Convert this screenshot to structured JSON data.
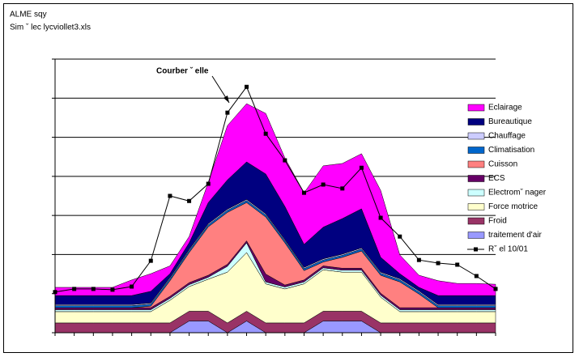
{
  "chart_data": {
    "type": "area",
    "stacked": true,
    "title": "ALME sqy",
    "subtitle": "Sim ˇ lec lycviollet3.xls",
    "annotation": "Courber ˇ elle",
    "categories": [
      null,
      null,
      null,
      null,
      null,
      null,
      null,
      null,
      null,
      null,
      null,
      null,
      null,
      null,
      null,
      null,
      null,
      null,
      null,
      null,
      null,
      null,
      null,
      null
    ],
    "ylim": [
      0,
      7
    ],
    "yticks": [
      0,
      1,
      2,
      3,
      4,
      5,
      6,
      7
    ],
    "grid": true,
    "legend": "right",
    "series": [
      {
        "name": "Eclairage",
        "color": "#ff00ff",
        "values": [
          0.21,
          0.21,
          0.21,
          0.21,
          0.4,
          0.45,
          0.2,
          0.16,
          0.52,
          1.39,
          1.49,
          1.55,
          1.24,
          1.32,
          1.57,
          1.41,
          1.41,
          1.71,
          0.48,
          0.31,
          0.38,
          0.31,
          0.31,
          0.29
        ]
      },
      {
        "name": "Bureautique",
        "color": "#000080",
        "values": [
          0.23,
          0.23,
          0.23,
          0.23,
          0.23,
          0.3,
          0.1,
          0.17,
          0.54,
          0.75,
          0.96,
          1.02,
          0.85,
          0.59,
          0.81,
          0.91,
          1.0,
          0.38,
          0.13,
          0.09,
          0.23,
          0.23,
          0.23,
          0.23
        ]
      },
      {
        "name": "Chauffage",
        "color": "#ccccff",
        "values": [
          0.03,
          0.03,
          0.03,
          0.03,
          0.03,
          0.03,
          0.03,
          0.03,
          0.03,
          0.03,
          0.03,
          0.03,
          0.03,
          0.03,
          0.03,
          0.03,
          0.03,
          0.03,
          0.03,
          0.03,
          0.03,
          0.03,
          0.03,
          0.03
        ]
      },
      {
        "name": "Climatisation",
        "color": "#0066cc",
        "values": [
          0.05,
          0.05,
          0.05,
          0.05,
          0.05,
          0.05,
          0.05,
          0.05,
          0.05,
          0.05,
          0.05,
          0.05,
          0.05,
          0.05,
          0.05,
          0.05,
          0.05,
          0.05,
          0.05,
          0.05,
          0.05,
          0.05,
          0.05,
          0.05
        ]
      },
      {
        "name": "Cuisson",
        "color": "#ff8080",
        "values": [
          0,
          0,
          0,
          0,
          0,
          0.04,
          0.4,
          0.77,
          1.24,
          1.33,
          0.98,
          1.46,
          1.08,
          0.24,
          0.1,
          0.28,
          0.44,
          0.46,
          0.66,
          0.35,
          0,
          0,
          0,
          0
        ]
      },
      {
        "name": "ECS",
        "color": "#660066",
        "values": [
          0.05,
          0.05,
          0.05,
          0.05,
          0.05,
          0.05,
          0.05,
          0.05,
          0.05,
          0.05,
          0.05,
          0.2,
          0.05,
          0.05,
          0.05,
          0.05,
          0.05,
          0.05,
          0.05,
          0.05,
          0.05,
          0.05,
          0.05,
          0.05
        ]
      },
      {
        "name": "Electromˇ nager",
        "color": "#ccffff",
        "values": [
          0.05,
          0.05,
          0.05,
          0.05,
          0.05,
          0.05,
          0.05,
          0.05,
          0.05,
          0.15,
          0.25,
          0.05,
          0.05,
          0.05,
          0.05,
          0.05,
          0.05,
          0.05,
          0.05,
          0.05,
          0.05,
          0.05,
          0.05,
          0.05
        ]
      },
      {
        "name": "Force motrice",
        "color": "#ffffcc",
        "values": [
          0.29,
          0.29,
          0.29,
          0.29,
          0.29,
          0.29,
          0.58,
          0.63,
          0.82,
          1.3,
          1.5,
          1.0,
          0.87,
          1.0,
          1.06,
          1.0,
          1.0,
          0.66,
          0.29,
          0.29,
          0.29,
          0.29,
          0.29,
          0.29
        ]
      },
      {
        "name": "Froid",
        "color": "#993366",
        "values": [
          0.25,
          0.25,
          0.25,
          0.25,
          0.25,
          0.25,
          0.25,
          0.25,
          0.25,
          0.25,
          0.25,
          0.25,
          0.25,
          0.25,
          0.25,
          0.25,
          0.25,
          0.25,
          0.25,
          0.25,
          0.25,
          0.25,
          0.25,
          0.25
        ]
      },
      {
        "name": "traitement d'air",
        "color": "#9999ff",
        "values": [
          0,
          0,
          0,
          0,
          0,
          0,
          0,
          0.3,
          0.3,
          0,
          0.3,
          0,
          0,
          0,
          0.3,
          0.3,
          0.3,
          0,
          0,
          0,
          0,
          0,
          0,
          0
        ]
      },
      {
        "name": "Rˇ el 10/01",
        "type": "line",
        "color": "#000000",
        "values": [
          1.04,
          1.12,
          1.12,
          1.1,
          1.18,
          1.84,
          3.5,
          3.37,
          3.81,
          5.63,
          6.29,
          5.09,
          4.41,
          3.58,
          3.79,
          3.69,
          4.22,
          2.94,
          2.46,
          1.86,
          1.78,
          1.74,
          1.45,
          1.12
        ]
      }
    ]
  }
}
